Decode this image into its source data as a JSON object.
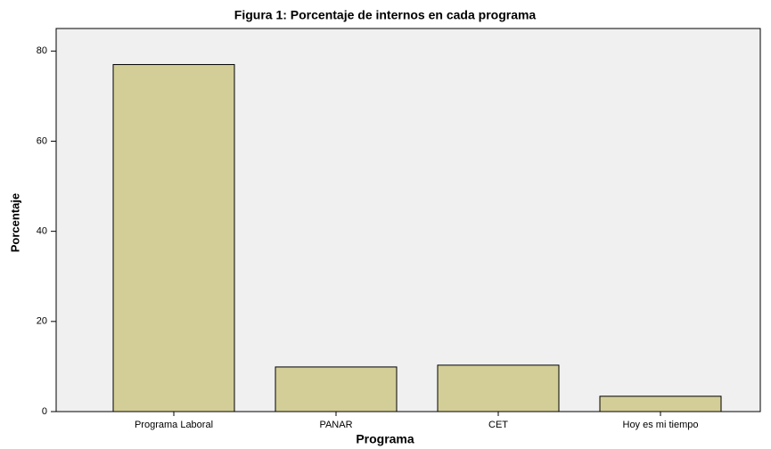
{
  "chart_data": {
    "type": "bar",
    "title": "Figura 1: Porcentaje de internos en cada programa",
    "x_label": "Programa",
    "y_label": "Porcentaje",
    "categories": [
      "Programa Laboral",
      "PANAR",
      "CET",
      "Hoy es mi tiempo"
    ],
    "values": [
      77.0,
      9.9,
      10.3,
      3.4
    ],
    "color": "#d3ce97",
    "ylim": [
      0,
      85
    ],
    "yticks": [
      0,
      20,
      40,
      60,
      80
    ],
    "grid": false
  }
}
